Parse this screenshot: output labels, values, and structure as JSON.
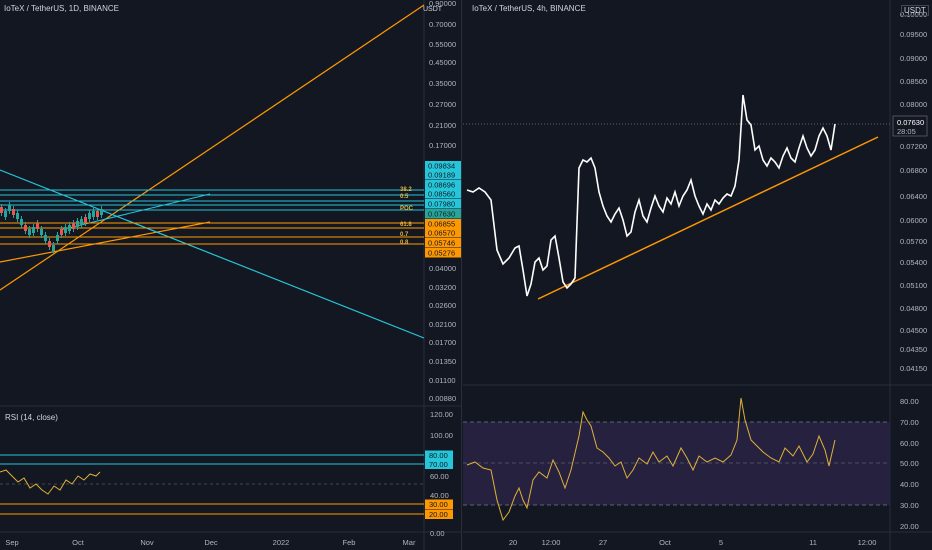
{
  "left_chart": {
    "title": "IoTeX / TetherUS, 1D, BINANCE",
    "currency": "USDT",
    "price_scale": [
      "0.90000",
      "0.70000",
      "0.55000",
      "0.45000",
      "0.35000",
      "0.27000",
      "0.21000",
      "0.17000",
      "0.04000",
      "0.03200",
      "0.02600",
      "0.02100",
      "0.01700",
      "0.01350",
      "0.01100",
      "0.00880"
    ],
    "price_badges": [
      {
        "value": "0.09834",
        "color": "#26c6da"
      },
      {
        "value": "0.09189",
        "color": "#26c6da"
      },
      {
        "value": "0.08696",
        "color": "#26c6da"
      },
      {
        "value": "0.08560",
        "color": "#26c6da"
      },
      {
        "value": "0.07980",
        "color": "#26c6da"
      },
      {
        "value": "0.07630",
        "color": "#26a69a"
      },
      {
        "value": "0.06855",
        "color": "#ff9800"
      },
      {
        "value": "0.06570",
        "color": "#ff9800"
      },
      {
        "value": "0.05746",
        "color": "#ff9800"
      },
      {
        "value": "0.05276",
        "color": "#ff9800"
      }
    ],
    "rsi_label": "RSI (14, close)",
    "rsi_scale": [
      "120.00",
      "100.00",
      "60.00",
      "40.00",
      "0.00"
    ],
    "rsi_badges": [
      {
        "value": "80.00",
        "color": "#26c6da"
      },
      {
        "value": "70.00",
        "color": "#26c6da"
      },
      {
        "value": "30.00",
        "color": "#ff9800"
      },
      {
        "value": "20.00",
        "color": "#ff9800"
      }
    ],
    "time_axis": [
      "Sep",
      "Oct",
      "Nov",
      "Dec",
      "2022",
      "Feb",
      "Mar"
    ],
    "fib_labels": [
      "38.2",
      "0.5",
      "POC",
      "61.8",
      "0.7",
      "0.8"
    ]
  },
  "right_chart": {
    "title": "IoTeX / TetherUS, 4h, BINANCE",
    "currency": "USDT",
    "price_scale": [
      "0.10000",
      "0.09500",
      "0.09000",
      "0.08500",
      "0.08000",
      "0.07200",
      "0.06800",
      "0.06400",
      "0.06000",
      "0.05700",
      "0.05400",
      "0.05100",
      "0.04800",
      "0.04500",
      "0.04350",
      "0.04150"
    ],
    "last_price": "0.07630",
    "countdown": "28:05",
    "rsi_scale": [
      "80.00",
      "70.00",
      "60.00",
      "50.00",
      "40.00",
      "30.00",
      "20.00"
    ],
    "time_axis": [
      "20",
      "12:00",
      "27",
      "Oct",
      "5",
      "11",
      "12:00"
    ]
  },
  "colors": {
    "background": "#131722",
    "price_line": "#ffffff",
    "trendline": "#ff9800",
    "cyan": "#26c6da",
    "rsi_line": "#e0b13a",
    "rsi_band": "#2a2446"
  }
}
